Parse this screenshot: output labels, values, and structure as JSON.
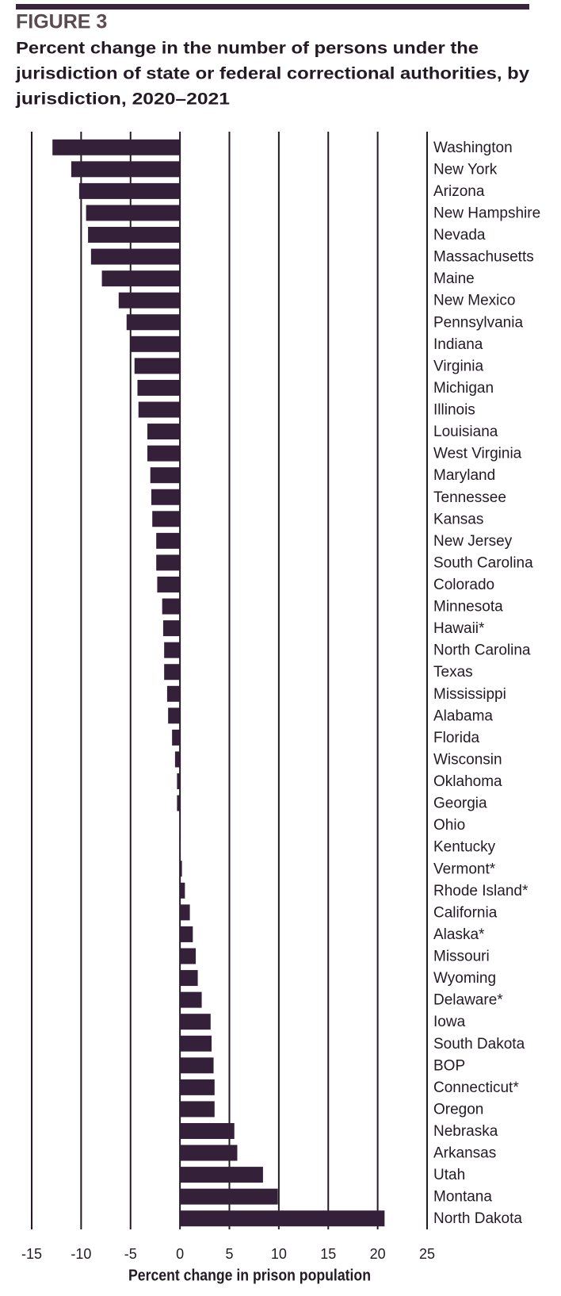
{
  "chart_data": {
    "type": "hbar",
    "figure_label": "FIGURE 3",
    "title": [
      "Percent change in the number of persons under the",
      "jurisdiction of state or federal correctional authorities, by",
      "jurisdiction, 2020–2021"
    ],
    "x_label": "Percent change in prison population",
    "categories": [
      "Washington",
      "New York",
      "Arizona",
      "New Hampshire",
      "Nevada",
      "Massachusetts",
      "Maine",
      "New Mexico",
      "Pennsylvania",
      "Indiana",
      "Virginia",
      "Michigan",
      "Illinois",
      "Louisiana",
      "West Virginia",
      "Maryland",
      "Tennessee",
      "Kansas",
      "New Jersey",
      "South Carolina",
      "Colorado",
      "Minnesota",
      "Hawaii*",
      "North Carolina",
      "Texas",
      "Mississippi",
      "Alabama",
      "Florida",
      "Wisconsin",
      "Oklahoma",
      "Georgia",
      "Ohio",
      "Kentucky",
      "Vermont*",
      "Rhode Island*",
      "California",
      "Alaska*",
      "Missouri",
      "Wyoming",
      "Delaware*",
      "Iowa",
      "South Dakota",
      "BOP",
      "Connecticut*",
      "Oregon",
      "Nebraska",
      "Arkansas",
      "Utah",
      "Montana",
      "North Dakota"
    ],
    "values": [
      -12.9,
      -11.0,
      -10.2,
      -9.5,
      -9.3,
      -9.0,
      -7.9,
      -6.2,
      -5.4,
      -5.0,
      -4.6,
      -4.3,
      -4.2,
      -3.3,
      -3.3,
      -3.0,
      -2.9,
      -2.8,
      -2.4,
      -2.4,
      -2.3,
      -1.8,
      -1.7,
      -1.6,
      -1.6,
      -1.3,
      -1.2,
      -0.8,
      -0.5,
      -0.3,
      -0.3,
      -0.05,
      0.05,
      0.2,
      0.5,
      1.0,
      1.3,
      1.6,
      1.8,
      2.2,
      3.1,
      3.2,
      3.4,
      3.5,
      3.5,
      5.5,
      5.8,
      8.4,
      9.9,
      20.7
    ],
    "color": "#35203a",
    "xlim": [
      -15,
      25
    ],
    "xticks": [
      -15,
      -10,
      -5,
      0,
      5,
      10,
      15,
      20,
      25
    ],
    "grid": true
  }
}
